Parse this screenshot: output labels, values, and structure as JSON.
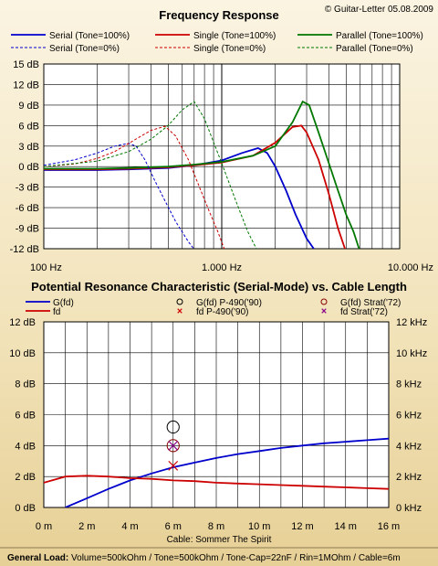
{
  "copyright": "© Guitar-Letter 05.08.2009",
  "footer": {
    "bold": "General Load:",
    "text": " Volume=500kOhm / Tone=500kOhm / Tone-Cap=22nF / Rin=1MOhm / Cable=6m"
  },
  "chart_data": [
    {
      "type": "line",
      "title": "Frequency Response",
      "x_scale": "log",
      "xlim": [
        100,
        10000
      ],
      "ylim": [
        -12,
        15
      ],
      "x_ticks": [
        100,
        1000,
        10000
      ],
      "x_tick_labels": [
        "100 Hz",
        "1.000 Hz",
        "10.000 Hz"
      ],
      "y_ticks": [
        -12,
        -9,
        -6,
        -3,
        0,
        3,
        6,
        9,
        12,
        15
      ],
      "y_tick_labels": [
        "-12 dB",
        "-9 dB",
        "-6 dB",
        "-3 dB",
        "0 dB",
        "3 dB",
        "6 dB",
        "9 dB",
        "12 dB",
        "15 dB"
      ],
      "grid": true,
      "legend": "top",
      "series": [
        {
          "name": "Serial (Tone=100%)",
          "color": "#0000cc",
          "dash": false,
          "x": [
            100,
            200,
            300,
            500,
            700,
            1000,
            1300,
            1600,
            1800,
            2000,
            2300,
            2600,
            3000,
            3500
          ],
          "y": [
            -0.5,
            -0.5,
            -0.4,
            -0.2,
            0.2,
            0.9,
            2.0,
            2.7,
            2.0,
            0,
            -3.5,
            -7,
            -10.5,
            -13
          ]
        },
        {
          "name": "Single (Tone=100%)",
          "color": "#cc0000",
          "dash": false,
          "x": [
            100,
            200,
            300,
            500,
            700,
            1000,
            1500,
            2000,
            2500,
            2800,
            3000,
            3500,
            4000,
            4500,
            5000
          ],
          "y": [
            -0.4,
            -0.4,
            -0.3,
            -0.1,
            0.2,
            0.6,
            1.6,
            3.5,
            5.8,
            6.0,
            5.0,
            1.0,
            -4.0,
            -9.0,
            -12.5
          ]
        },
        {
          "name": "Parallel (Tone=100%)",
          "color": "#007700",
          "dash": false,
          "x": [
            100,
            200,
            300,
            500,
            700,
            1000,
            1500,
            2000,
            2500,
            2850,
            3100,
            3500,
            4000,
            4500,
            5000,
            5500,
            6000
          ],
          "y": [
            -0.3,
            -0.3,
            -0.2,
            0,
            0.3,
            0.7,
            1.6,
            3.0,
            6.5,
            9.5,
            9.0,
            5.0,
            0.5,
            -3.5,
            -7.0,
            -9.5,
            -12.5
          ]
        },
        {
          "name": "Serial (Tone=0%)",
          "color": "#0000cc",
          "dash": true,
          "x": [
            100,
            150,
            200,
            250,
            300,
            330,
            370,
            420,
            480,
            550,
            650,
            800
          ],
          "y": [
            0.2,
            1.0,
            2.0,
            3.0,
            3.4,
            3.0,
            1.0,
            -2.0,
            -5.0,
            -8.0,
            -11.0,
            -14.0
          ]
        },
        {
          "name": "Single (Tone=0%)",
          "color": "#cc0000",
          "dash": true,
          "x": [
            100,
            150,
            200,
            250,
            300,
            400,
            480,
            550,
            650,
            750,
            850,
            950,
            1050
          ],
          "y": [
            0,
            0.4,
            1.2,
            2.2,
            3.4,
            5.3,
            5.9,
            4.5,
            1.0,
            -3.0,
            -6.5,
            -9.5,
            -12.5
          ]
        },
        {
          "name": "Parallel (Tone=0%)",
          "color": "#007700",
          "dash": true,
          "x": [
            100,
            200,
            300,
            400,
            500,
            600,
            700,
            800,
            1000,
            1200,
            1400,
            1600
          ],
          "y": [
            0,
            0.8,
            2.2,
            4.0,
            6.0,
            8.3,
            9.5,
            7.0,
            0.5,
            -5.0,
            -9.5,
            -12.5
          ]
        }
      ]
    },
    {
      "type": "line",
      "title": "Potential Resonance Characteristic (Serial-Mode) vs. Cable Length",
      "xlabel": "Cable: Sommer The Spirit",
      "xlim": [
        0,
        16
      ],
      "ylim": [
        0,
        12
      ],
      "y2lim": [
        0,
        12
      ],
      "x_ticks": [
        0,
        2,
        4,
        6,
        8,
        10,
        12,
        14,
        16
      ],
      "x_tick_labels": [
        "0 m",
        "2 m",
        "4 m",
        "6 m",
        "8 m",
        "10 m",
        "12 m",
        "14 m",
        "16 m"
      ],
      "y_tick_labels": [
        "0 dB",
        "2 dB",
        "4 dB",
        "6 dB",
        "8 dB",
        "10 dB",
        "12 dB"
      ],
      "y2_tick_labels": [
        "0 kHz",
        "2 kHz",
        "4 kHz",
        "6 kHz",
        "8 kHz",
        "10 kHz",
        "12 kHz"
      ],
      "grid": true,
      "legend": "top",
      "series": [
        {
          "name": "G(fd)",
          "color": "#0000cc",
          "axis": "left",
          "x": [
            1,
            2,
            3,
            4,
            5,
            6,
            7,
            8,
            9,
            10,
            11,
            12,
            13,
            14,
            15,
            16
          ],
          "y": [
            0,
            0.6,
            1.2,
            1.75,
            2.2,
            2.6,
            2.9,
            3.2,
            3.45,
            3.65,
            3.85,
            4.0,
            4.15,
            4.25,
            4.35,
            4.45
          ]
        },
        {
          "name": "fd",
          "color": "#cc0000",
          "axis": "right",
          "x": [
            0,
            1,
            2,
            3,
            4,
            5,
            6,
            7,
            8,
            9,
            10,
            11,
            12,
            13,
            14,
            15,
            16
          ],
          "y": [
            1.6,
            2.0,
            2.05,
            2.0,
            1.9,
            1.85,
            1.75,
            1.7,
            1.6,
            1.55,
            1.5,
            1.45,
            1.4,
            1.35,
            1.3,
            1.25,
            1.2
          ]
        }
      ],
      "markers": [
        {
          "name": "G(fd) P-490('90)",
          "symbol": "o",
          "color": "#0000cc",
          "x": 6,
          "y": 5.2
        },
        {
          "name": "fd P-490('90)",
          "symbol": "x",
          "color": "#cc0000",
          "x": 6,
          "y": 2.7
        },
        {
          "name": "G(fd) Strat('72)",
          "symbol": "o",
          "color": "#880000",
          "x": 6,
          "y": 4.0
        },
        {
          "name": "fd Strat('72)",
          "symbol": "x",
          "color": "#880088",
          "x": 6,
          "y": 4.0
        }
      ]
    }
  ]
}
